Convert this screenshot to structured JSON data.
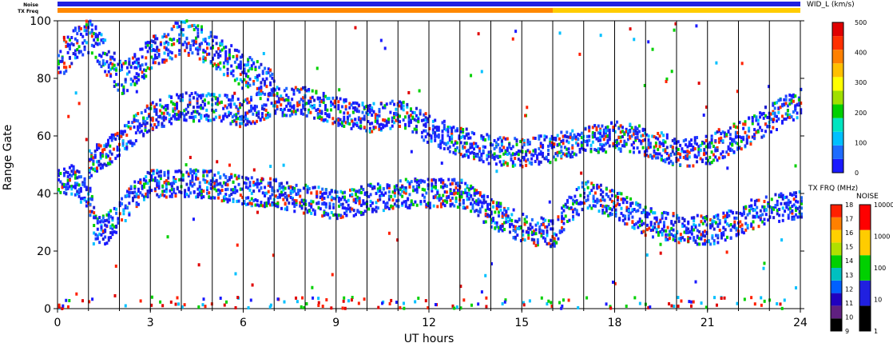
{
  "chart_data": {
    "type": "heatmap",
    "title": "",
    "xlabel": "UT hours",
    "ylabel": "Range Gate",
    "xlim": [
      0,
      24
    ],
    "ylim": [
      0,
      100
    ],
    "xticks": [
      "0",
      "3",
      "6",
      "9",
      "12",
      "15",
      "18",
      "21",
      "24"
    ],
    "yticks": [
      "0",
      "20",
      "40",
      "60",
      "80",
      "100"
    ],
    "hour_lines": [
      1,
      2,
      3,
      4,
      5,
      6,
      7,
      8,
      9,
      10,
      11,
      12,
      13,
      14,
      15,
      16,
      17,
      18,
      19,
      20,
      21,
      22,
      23,
      24
    ],
    "top_bars": {
      "noise_label": "Noise",
      "txfreq_label": "TX Freq",
      "noise_color": "#2020e0",
      "txfreq_segments": [
        {
          "x0": 0,
          "x1": 16,
          "color": "#ff8800"
        },
        {
          "x0": 16,
          "x1": 24,
          "color": "#ffcc00"
        }
      ]
    },
    "scatter_bands": [
      {
        "name": "main_lower",
        "points": [
          [
            0,
            43
          ],
          [
            0.5,
            45
          ],
          [
            1,
            38
          ],
          [
            1.2,
            28
          ],
          [
            1.5,
            27
          ],
          [
            2,
            33
          ],
          [
            2.5,
            40
          ],
          [
            3,
            43
          ],
          [
            4,
            44
          ],
          [
            5,
            43
          ],
          [
            6,
            41
          ],
          [
            7,
            40
          ],
          [
            8,
            38
          ],
          [
            9,
            36
          ],
          [
            10,
            38
          ],
          [
            11,
            40
          ],
          [
            12,
            40
          ],
          [
            13,
            40
          ],
          [
            14,
            33
          ],
          [
            15,
            28
          ],
          [
            16,
            26
          ],
          [
            16.5,
            34
          ],
          [
            17,
            40
          ],
          [
            18,
            36
          ],
          [
            19,
            30
          ],
          [
            20,
            28
          ],
          [
            21,
            27
          ],
          [
            22,
            30
          ],
          [
            23,
            35
          ],
          [
            24,
            36
          ]
        ],
        "spread": 5
      },
      {
        "name": "upper_band",
        "points": [
          [
            1,
            50
          ],
          [
            2,
            58
          ],
          [
            3,
            67
          ],
          [
            4,
            70
          ],
          [
            5,
            70
          ],
          [
            6,
            68
          ],
          [
            7,
            72
          ],
          [
            8,
            72
          ],
          [
            8.5,
            70
          ],
          [
            10,
            66
          ],
          [
            11,
            68
          ],
          [
            12,
            62
          ],
          [
            13,
            58
          ],
          [
            14,
            55
          ],
          [
            15,
            54
          ],
          [
            16,
            56
          ],
          [
            17,
            58
          ],
          [
            18,
            60
          ],
          [
            19,
            58
          ],
          [
            20,
            54
          ],
          [
            21,
            55
          ],
          [
            22,
            60
          ],
          [
            23,
            66
          ],
          [
            24,
            72
          ]
        ],
        "spread": 5
      },
      {
        "name": "high_scatter",
        "points": [
          [
            0,
            85
          ],
          [
            0.5,
            92
          ],
          [
            1,
            95
          ],
          [
            2,
            80
          ],
          [
            3,
            88
          ],
          [
            4,
            95
          ],
          [
            5,
            90
          ],
          [
            6,
            82
          ],
          [
            7,
            78
          ]
        ],
        "spread": 6
      }
    ],
    "colorbars": [
      {
        "title": "WID_L (km/s)",
        "ticks": [
          "0",
          "100",
          "200",
          "300",
          "400",
          "500"
        ],
        "colors": [
          "#1a1aff",
          "#1e6cff",
          "#00c0ff",
          "#00e5c0",
          "#00d000",
          "#a0e000",
          "#ffff00",
          "#ffc000",
          "#ff8000",
          "#ff3000",
          "#e00000"
        ]
      },
      {
        "title": "TX FRQ (MHz)",
        "ticks": [
          "9",
          "10",
          "11",
          "12",
          "13",
          "14",
          "15",
          "16",
          "17",
          "18"
        ],
        "colors": [
          "#000000",
          "#602080",
          "#2000c0",
          "#0060ff",
          "#00c0c0",
          "#00d000",
          "#b0e000",
          "#ffd000",
          "#ff8000",
          "#ff2000"
        ]
      },
      {
        "title": "NOISE",
        "ticks": [
          "1",
          "10",
          "100",
          "1000",
          "10000"
        ],
        "colors": [
          "#000000",
          "#2020e0",
          "#00d000",
          "#ffcc00",
          "#ff0000"
        ]
      }
    ]
  }
}
